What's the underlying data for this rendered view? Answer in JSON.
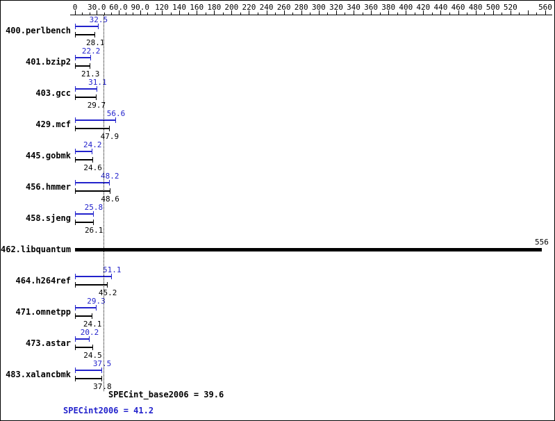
{
  "colors": {
    "peak": "#2222cc",
    "base": "#000000",
    "background": "#ffffff"
  },
  "chart_data": {
    "type": "bar",
    "orientation": "horizontal",
    "title": "",
    "xlim": [
      0,
      560
    ],
    "axis_scale_note": "piecewise scale: 0-120 labeled every 30, 120-560 labeled every 20",
    "x_tick_labels": [
      {
        "text": "0",
        "value": 0
      },
      {
        "text": "30.0",
        "value": 30
      },
      {
        "text": "60.0",
        "value": 60
      },
      {
        "text": "90.0",
        "value": 90
      },
      {
        "text": "120",
        "value": 120
      },
      {
        "text": "140",
        "value": 140
      },
      {
        "text": "160",
        "value": 160
      },
      {
        "text": "180",
        "value": 180
      },
      {
        "text": "200",
        "value": 200
      },
      {
        "text": "220",
        "value": 220
      },
      {
        "text": "240",
        "value": 240
      },
      {
        "text": "260",
        "value": 260
      },
      {
        "text": "280",
        "value": 280
      },
      {
        "text": "300",
        "value": 300
      },
      {
        "text": "320",
        "value": 320
      },
      {
        "text": "340",
        "value": 340
      },
      {
        "text": "360",
        "value": 360
      },
      {
        "text": "380",
        "value": 380
      },
      {
        "text": "400",
        "value": 400
      },
      {
        "text": "420",
        "value": 420
      },
      {
        "text": "440",
        "value": 440
      },
      {
        "text": "460",
        "value": 460
      },
      {
        "text": "480",
        "value": 480
      },
      {
        "text": "500",
        "value": 500
      },
      {
        "text": "520",
        "value": 520
      },
      {
        "text": "560",
        "value": 560
      }
    ],
    "unlabeled_major_ticks": [
      540
    ],
    "series_names": [
      "SPECint2006",
      "SPECint_base2006"
    ],
    "rows": [
      {
        "name": "400.perlbench",
        "peak": 32.5,
        "base": 28.1,
        "peak_text": "32.5",
        "base_text": "28.1"
      },
      {
        "name": "401.bzip2",
        "peak": 22.2,
        "base": 21.3,
        "peak_text": "22.2",
        "base_text": "21.3"
      },
      {
        "name": "403.gcc",
        "peak": 31.1,
        "base": 29.7,
        "peak_text": "31.1",
        "base_text": "29.7"
      },
      {
        "name": "429.mcf",
        "peak": 56.6,
        "base": 47.9,
        "peak_text": "56.6",
        "base_text": "47.9"
      },
      {
        "name": "445.gobmk",
        "peak": 24.2,
        "base": 24.6,
        "peak_text": "24.2",
        "base_text": "24.6"
      },
      {
        "name": "456.hmmer",
        "peak": 48.2,
        "base": 48.6,
        "peak_text": "48.2",
        "base_text": "48.6"
      },
      {
        "name": "458.sjeng",
        "peak": 25.8,
        "base": 26.1,
        "peak_text": "25.8",
        "base_text": "26.1"
      },
      {
        "name": "462.libquantum",
        "peak": 556,
        "base": 556,
        "combined": true,
        "value_text": "556"
      },
      {
        "name": "464.h264ref",
        "peak": 51.1,
        "base": 45.2,
        "peak_text": "51.1",
        "base_text": "45.2"
      },
      {
        "name": "471.omnetpp",
        "peak": 29.3,
        "base": 24.1,
        "peak_text": "29.3",
        "base_text": "24.1"
      },
      {
        "name": "473.astar",
        "peak": 20.2,
        "base": 24.5,
        "peak_text": "20.2",
        "base_text": "24.5"
      },
      {
        "name": "483.xalancbmk",
        "peak": 37.5,
        "base": 37.8,
        "peak_text": "37.5",
        "base_text": "37.8"
      }
    ]
  },
  "summary": {
    "base_label": "SPECint_base2006 = 39.6",
    "peak_label": "SPECint2006 = 41.2",
    "base_value": 39.6,
    "peak_value": 41.2
  }
}
